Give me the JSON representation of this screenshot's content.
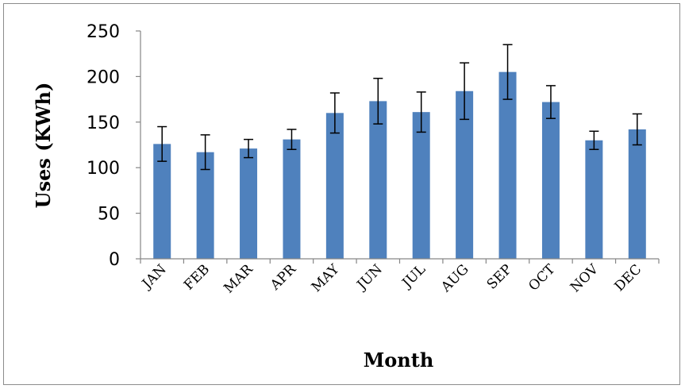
{
  "chart_data": {
    "type": "bar",
    "title": "",
    "xlabel": "Month",
    "ylabel": "Uses (KWh)",
    "categories": [
      "JAN",
      "FEB",
      "MAR",
      "APR",
      "MAY",
      "JUN",
      "JUL",
      "AUG",
      "SEP",
      "OCT",
      "NOV",
      "DEC"
    ],
    "values": [
      126,
      117,
      121,
      131,
      160,
      173,
      161,
      184,
      205,
      172,
      130,
      142
    ],
    "error": [
      19,
      19,
      10,
      11,
      22,
      25,
      22,
      31,
      30,
      18,
      10,
      17
    ],
    "ylim": [
      0,
      250
    ],
    "yticks": [
      0,
      50,
      100,
      150,
      200,
      250
    ],
    "bar_color": "#4f81bd",
    "error_bar_color": "#000000",
    "grid": false,
    "legend": "none"
  }
}
